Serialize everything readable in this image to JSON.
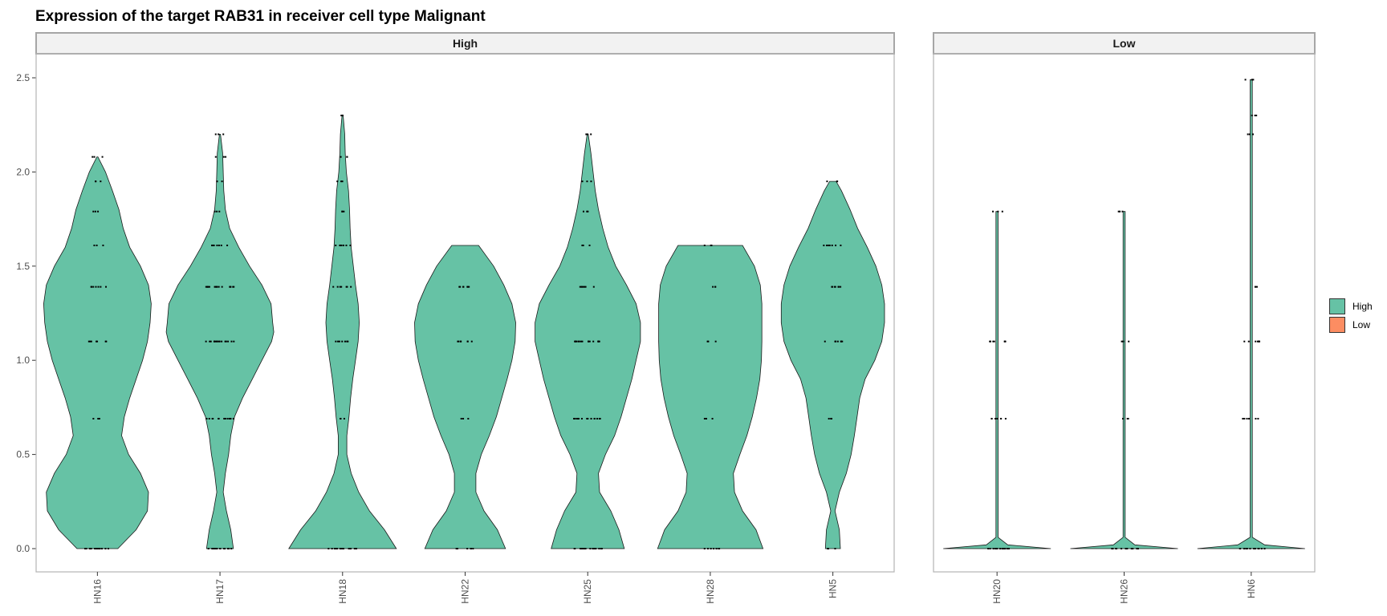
{
  "title": "Expression of the target RAB31 in receiver cell type Malignant",
  "colors": {
    "High": "#66c2a5",
    "Low": "#fc8d62"
  },
  "legend": [
    {
      "label": "High",
      "color": "#66c2a5"
    },
    {
      "label": "Low",
      "color": "#fc8d62"
    }
  ],
  "chart_data": {
    "type": "violin",
    "ylim": [
      0,
      2.5
    ],
    "yticks": [
      0.0,
      0.5,
      1.0,
      1.5,
      2.0,
      2.5
    ],
    "ytick_labels": [
      "0.0",
      "0.5",
      "1.0",
      "1.5",
      "2.0",
      "2.5"
    ],
    "grid": false,
    "legend_position": "right",
    "facets": [
      {
        "strip": "High",
        "fill": "High",
        "categories": [
          {
            "name": "HN16",
            "range": [
              0,
              2.08
            ],
            "density": [
              [
                0,
                0.38
              ],
              [
                0.1,
                0.72
              ],
              [
                0.2,
                0.93
              ],
              [
                0.3,
                0.95
              ],
              [
                0.4,
                0.8
              ],
              [
                0.5,
                0.58
              ],
              [
                0.6,
                0.45
              ],
              [
                0.7,
                0.5
              ],
              [
                0.8,
                0.6
              ],
              [
                0.9,
                0.72
              ],
              [
                1.0,
                0.84
              ],
              [
                1.1,
                0.93
              ],
              [
                1.2,
                0.98
              ],
              [
                1.3,
                1.0
              ],
              [
                1.4,
                0.95
              ],
              [
                1.5,
                0.8
              ],
              [
                1.6,
                0.6
              ],
              [
                1.7,
                0.48
              ],
              [
                1.8,
                0.4
              ],
              [
                1.9,
                0.28
              ],
              [
                2.0,
                0.15
              ],
              [
                2.08,
                0.01
              ]
            ],
            "points": [
              [
                0,
                "many"
              ],
              [
                0.69,
                "few"
              ],
              [
                1.1,
                "several"
              ],
              [
                1.39,
                "several"
              ],
              [
                1.61,
                "few"
              ],
              [
                1.79,
                "few"
              ],
              [
                1.95,
                "few"
              ],
              [
                2.08,
                "few"
              ]
            ]
          },
          {
            "name": "HN17",
            "range": [
              0,
              2.2
            ],
            "density": [
              [
                0,
                0.25
              ],
              [
                0.1,
                0.2
              ],
              [
                0.2,
                0.12
              ],
              [
                0.3,
                0.06
              ],
              [
                0.4,
                0.1
              ],
              [
                0.5,
                0.16
              ],
              [
                0.6,
                0.2
              ],
              [
                0.7,
                0.27
              ],
              [
                0.8,
                0.42
              ],
              [
                0.9,
                0.6
              ],
              [
                1.0,
                0.78
              ],
              [
                1.1,
                0.96
              ],
              [
                1.15,
                1.0
              ],
              [
                1.2,
                0.98
              ],
              [
                1.3,
                0.95
              ],
              [
                1.4,
                0.78
              ],
              [
                1.5,
                0.55
              ],
              [
                1.6,
                0.35
              ],
              [
                1.7,
                0.18
              ],
              [
                1.8,
                0.1
              ],
              [
                1.9,
                0.07
              ],
              [
                2.0,
                0.06
              ],
              [
                2.1,
                0.05
              ],
              [
                2.2,
                0.01
              ]
            ],
            "points": [
              [
                0,
                "many"
              ],
              [
                0.69,
                "many"
              ],
              [
                1.1,
                "many"
              ],
              [
                1.39,
                "many"
              ],
              [
                1.61,
                "several"
              ],
              [
                1.79,
                "few"
              ],
              [
                1.95,
                "few"
              ],
              [
                2.08,
                "few"
              ],
              [
                2.2,
                "few"
              ]
            ]
          },
          {
            "name": "HN18",
            "range": [
              0,
              2.3
            ],
            "density": [
              [
                0,
                1.0
              ],
              [
                0.1,
                0.78
              ],
              [
                0.2,
                0.5
              ],
              [
                0.3,
                0.3
              ],
              [
                0.4,
                0.16
              ],
              [
                0.5,
                0.08
              ],
              [
                0.6,
                0.08
              ],
              [
                0.7,
                0.12
              ],
              [
                0.8,
                0.15
              ],
              [
                0.9,
                0.19
              ],
              [
                1.0,
                0.24
              ],
              [
                1.1,
                0.29
              ],
              [
                1.2,
                0.31
              ],
              [
                1.3,
                0.29
              ],
              [
                1.4,
                0.24
              ],
              [
                1.5,
                0.2
              ],
              [
                1.6,
                0.16
              ],
              [
                1.7,
                0.14
              ],
              [
                1.8,
                0.13
              ],
              [
                1.9,
                0.11
              ],
              [
                2.0,
                0.07
              ],
              [
                2.1,
                0.05
              ],
              [
                2.2,
                0.04
              ],
              [
                2.3,
                0.01
              ]
            ],
            "points": [
              [
                0,
                "many"
              ],
              [
                0.69,
                "few"
              ],
              [
                1.1,
                "several"
              ],
              [
                1.39,
                "several"
              ],
              [
                1.61,
                "several"
              ],
              [
                1.79,
                "few"
              ],
              [
                1.95,
                "few"
              ],
              [
                2.08,
                "few"
              ],
              [
                2.3,
                "few"
              ]
            ]
          },
          {
            "name": "HN22",
            "range": [
              0,
              1.61
            ],
            "density": [
              [
                0,
                0.75
              ],
              [
                0.1,
                0.6
              ],
              [
                0.2,
                0.35
              ],
              [
                0.3,
                0.2
              ],
              [
                0.4,
                0.2
              ],
              [
                0.5,
                0.3
              ],
              [
                0.6,
                0.45
              ],
              [
                0.7,
                0.58
              ],
              [
                0.8,
                0.68
              ],
              [
                0.9,
                0.78
              ],
              [
                1.0,
                0.87
              ],
              [
                1.1,
                0.93
              ],
              [
                1.2,
                0.94
              ],
              [
                1.3,
                0.87
              ],
              [
                1.4,
                0.72
              ],
              [
                1.5,
                0.53
              ],
              [
                1.61,
                0.25
              ]
            ],
            "points": [
              [
                0,
                "several"
              ],
              [
                0.69,
                "few"
              ],
              [
                1.1,
                "several"
              ],
              [
                1.39,
                "several"
              ]
            ]
          },
          {
            "name": "HN25",
            "range": [
              0,
              2.2
            ],
            "density": [
              [
                0,
                0.68
              ],
              [
                0.1,
                0.58
              ],
              [
                0.2,
                0.43
              ],
              [
                0.3,
                0.22
              ],
              [
                0.4,
                0.2
              ],
              [
                0.5,
                0.33
              ],
              [
                0.6,
                0.5
              ],
              [
                0.7,
                0.62
              ],
              [
                0.8,
                0.72
              ],
              [
                0.9,
                0.82
              ],
              [
                1.0,
                0.9
              ],
              [
                1.1,
                0.98
              ],
              [
                1.2,
                0.98
              ],
              [
                1.3,
                0.9
              ],
              [
                1.4,
                0.72
              ],
              [
                1.5,
                0.52
              ],
              [
                1.6,
                0.38
              ],
              [
                1.7,
                0.28
              ],
              [
                1.8,
                0.2
              ],
              [
                1.9,
                0.14
              ],
              [
                2.0,
                0.1
              ],
              [
                2.1,
                0.06
              ],
              [
                2.2,
                0.01
              ]
            ],
            "points": [
              [
                0,
                "many"
              ],
              [
                0.69,
                "many"
              ],
              [
                1.1,
                "many"
              ],
              [
                1.39,
                "several"
              ],
              [
                1.61,
                "few"
              ],
              [
                1.79,
                "few"
              ],
              [
                1.95,
                "few"
              ],
              [
                2.2,
                "few"
              ]
            ]
          },
          {
            "name": "HN28",
            "range": [
              0,
              1.61
            ],
            "density": [
              [
                0,
                0.98
              ],
              [
                0.1,
                0.85
              ],
              [
                0.2,
                0.6
              ],
              [
                0.3,
                0.45
              ],
              [
                0.4,
                0.43
              ],
              [
                0.5,
                0.55
              ],
              [
                0.6,
                0.68
              ],
              [
                0.7,
                0.78
              ],
              [
                0.8,
                0.86
              ],
              [
                0.9,
                0.92
              ],
              [
                1.0,
                0.95
              ],
              [
                1.1,
                0.96
              ],
              [
                1.2,
                0.96
              ],
              [
                1.3,
                0.96
              ],
              [
                1.4,
                0.93
              ],
              [
                1.5,
                0.82
              ],
              [
                1.61,
                0.6
              ]
            ],
            "points": [
              [
                0,
                "several"
              ],
              [
                0.69,
                "few"
              ],
              [
                1.1,
                "few"
              ],
              [
                1.39,
                "few"
              ],
              [
                1.61,
                "few"
              ]
            ]
          },
          {
            "name": "HN5",
            "range": [
              0,
              1.95
            ],
            "density": [
              [
                0,
                0.14
              ],
              [
                0.1,
                0.12
              ],
              [
                0.2,
                0.04
              ],
              [
                0.3,
                0.12
              ],
              [
                0.4,
                0.25
              ],
              [
                0.5,
                0.34
              ],
              [
                0.6,
                0.4
              ],
              [
                0.7,
                0.45
              ],
              [
                0.8,
                0.5
              ],
              [
                0.9,
                0.6
              ],
              [
                1.0,
                0.78
              ],
              [
                1.1,
                0.91
              ],
              [
                1.2,
                0.96
              ],
              [
                1.3,
                0.96
              ],
              [
                1.4,
                0.91
              ],
              [
                1.5,
                0.8
              ],
              [
                1.6,
                0.64
              ],
              [
                1.7,
                0.46
              ],
              [
                1.8,
                0.32
              ],
              [
                1.9,
                0.16
              ],
              [
                1.95,
                0.06
              ]
            ],
            "points": [
              [
                0,
                "few"
              ],
              [
                0.69,
                "few"
              ],
              [
                1.1,
                "several"
              ],
              [
                1.39,
                "several"
              ],
              [
                1.61,
                "several"
              ],
              [
                1.95,
                "few"
              ]
            ]
          }
        ]
      },
      {
        "strip": "Low",
        "fill": "High",
        "categories": [
          {
            "name": "HN20",
            "range": [
              0,
              1.79
            ],
            "density": [
              [
                0,
                1.0
              ],
              [
                0.02,
                0.2
              ],
              [
                0.06,
                0.02
              ],
              [
                1.79,
                0.02
              ]
            ],
            "points": [
              [
                0,
                "many"
              ],
              [
                0.69,
                "several"
              ],
              [
                1.1,
                "several"
              ],
              [
                1.79,
                "few"
              ]
            ]
          },
          {
            "name": "HN26",
            "range": [
              0,
              1.79
            ],
            "density": [
              [
                0,
                1.0
              ],
              [
                0.02,
                0.2
              ],
              [
                0.06,
                0.02
              ],
              [
                1.79,
                0.02
              ]
            ],
            "points": [
              [
                0,
                "many"
              ],
              [
                0.69,
                "few"
              ],
              [
                1.1,
                "few"
              ],
              [
                1.79,
                "few"
              ]
            ]
          },
          {
            "name": "HN6",
            "range": [
              0,
              2.49
            ],
            "density": [
              [
                0,
                1.0
              ],
              [
                0.02,
                0.25
              ],
              [
                0.06,
                0.02
              ],
              [
                2.49,
                0.02
              ]
            ],
            "points": [
              [
                0,
                "many"
              ],
              [
                0.69,
                "several"
              ],
              [
                1.1,
                "several"
              ],
              [
                1.39,
                "few"
              ],
              [
                2.2,
                "few"
              ],
              [
                2.3,
                "few"
              ],
              [
                2.49,
                "few"
              ]
            ]
          }
        ]
      }
    ]
  }
}
